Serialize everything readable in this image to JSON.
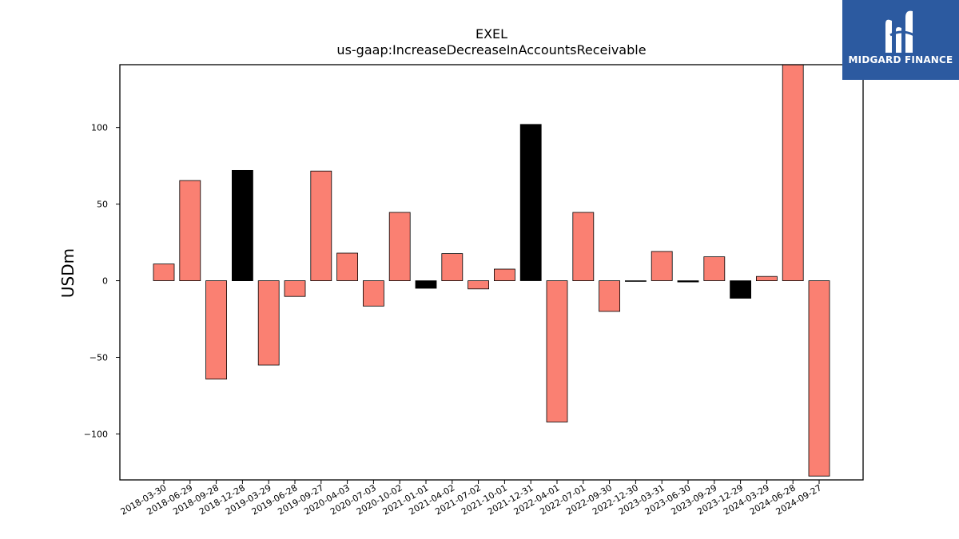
{
  "brand": {
    "name": "MIDGARD FINANCE",
    "bg_color": "#2c5aa0",
    "mark_icon": "midgard-logo-icon"
  },
  "colors": {
    "positive": "#fa8072",
    "highlight": "#000000",
    "edge": "#000000"
  },
  "chart_data": {
    "type": "bar",
    "title": "EXEL",
    "subtitle": "us-gaap:IncreaseDecreaseInAccountsReceivable",
    "xlabel": "",
    "ylabel": "USDm",
    "ylim": [
      -130,
      141
    ],
    "yticks": [
      -100,
      -50,
      0,
      50,
      100
    ],
    "ytick_labels": [
      "−100",
      "−50",
      "0",
      "50",
      "100"
    ],
    "grid": false,
    "categories": [
      "2018-03-30",
      "2018-06-29",
      "2018-09-28",
      "2018-12-28",
      "2019-03-29",
      "2019-06-28",
      "2019-09-27",
      "2020-04-03",
      "2020-07-03",
      "2020-10-02",
      "2021-01-01",
      "2021-04-02",
      "2021-07-02",
      "2021-10-01",
      "2021-12-31",
      "2022-04-01",
      "2022-07-01",
      "2022-09-30",
      "2022-12-30",
      "2023-03-31",
      "2023-06-30",
      "2023-09-29",
      "2023-12-29",
      "2024-03-29",
      "2024-06-28",
      "2024-09-27"
    ],
    "values": [
      10.9,
      65.4,
      -64.2,
      72.0,
      -55.0,
      -10.2,
      71.6,
      18.0,
      -16.5,
      44.6,
      -4.9,
      17.7,
      -5.3,
      7.6,
      102.0,
      -92.2,
      44.6,
      -20.0,
      0.0,
      19.1,
      -0.8,
      15.6,
      -11.4,
      2.8,
      141.0,
      -127.5
    ],
    "highlight": [
      false,
      false,
      false,
      true,
      false,
      false,
      false,
      false,
      false,
      false,
      true,
      false,
      false,
      false,
      true,
      false,
      false,
      false,
      true,
      false,
      true,
      false,
      true,
      false,
      false,
      false
    ]
  }
}
